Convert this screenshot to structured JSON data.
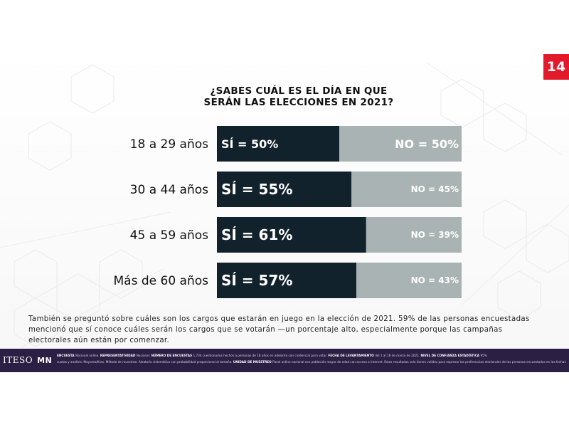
{
  "page_number": "14",
  "chart_data": {
    "type": "bar",
    "stacked": true,
    "orientation": "horizontal",
    "title": "¿SABES CUÁL ES EL DÍA EN QUE\nSERÁN LAS ELECCIONES EN 2021?",
    "categories": [
      "18 a 29 años",
      "30 a 44 años",
      "45 a 59 años",
      "Más de 60 años"
    ],
    "series": [
      {
        "name": "SÍ",
        "values": [
          50,
          55,
          61,
          57
        ],
        "labels": [
          "SÍ = 50%",
          "SÍ = 55%",
          "SÍ = 61%",
          "SÍ = 57%"
        ],
        "color": "#12222c"
      },
      {
        "name": "NO",
        "values": [
          50,
          45,
          39,
          43
        ],
        "labels": [
          "NO = 50%",
          "NO = 45%",
          "NO = 39%",
          "NO = 43%"
        ],
        "color": "#a9b3b3"
      }
    ],
    "xlim": [
      0,
      100
    ],
    "grid": false
  },
  "footnote": "También se preguntó sobre cuáles son los cargos que estarán en juego en la elección de 2021. 59% de las personas encuestadas mencionó que sí conoce cuáles serán los cargos que se votarán —un porcentaje alto, especialmente porque las campañas electorales aún están por comenzar.",
  "footer": {
    "logo_left": "ITESO",
    "logo_right": "MN",
    "meta_line1": [
      {
        "label": "ENCUESTA",
        "text": "Nacional online."
      },
      {
        "label": "REPRESENTATIVIDAD",
        "text": "Nacional."
      },
      {
        "label": "NÚMERO DE ENCUESTAS",
        "text": "1,734 cuestionarios hechos a personas de 18 años en adelante con credencial para votar."
      },
      {
        "label": "FECHA DE LEVANTAMIENTO",
        "text": "del 1 al 16 de marzo de 2021."
      },
      {
        "label": "NIVEL DE CONFIANZA ESTADÍSTICA",
        "text": "95%"
      }
    ],
    "meta_line2": [
      {
        "label": "",
        "text": "cuotas y análisis: Mayoreo/Kras. Método de muestreo: Aleatorio sistemático con probabilidad proporcional al tamaño."
      },
      {
        "label": "UNIDAD DE MUESTREO",
        "text": "Panel online nacional con población mayor de edad con acceso a internet."
      },
      {
        "label": "",
        "text": "Estos resultados solo tienen validez para expresar las preferencias electorales de las personas encuestadas en las fechas indicadas en el ejercicio."
      }
    ]
  },
  "colors": {
    "accent": "#e3192c",
    "yes": "#12222c",
    "no": "#a9b3b3",
    "footer_bg": "#2c1f44"
  }
}
